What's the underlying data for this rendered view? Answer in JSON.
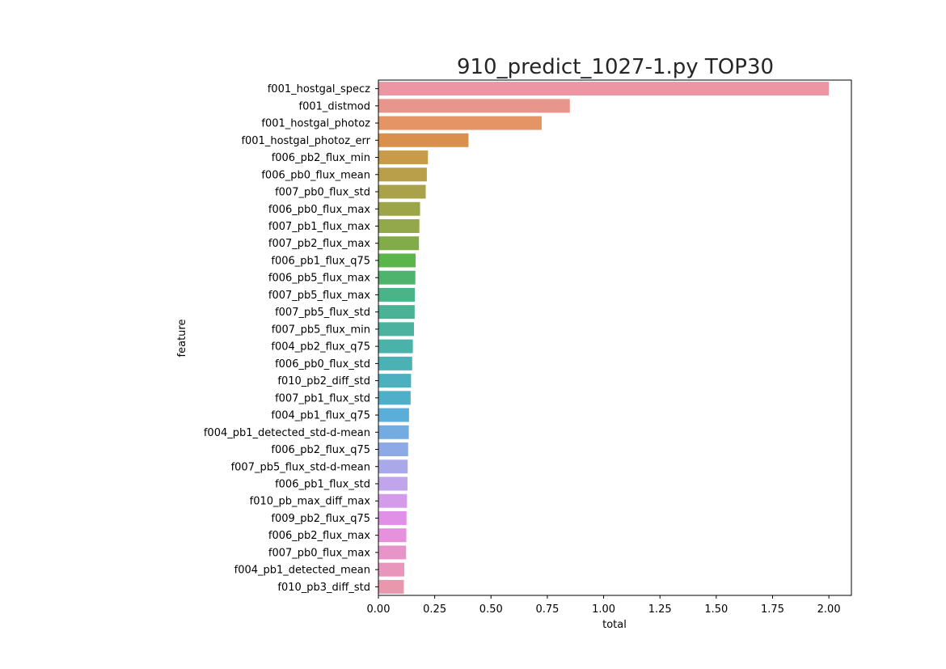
{
  "chart_data": {
    "type": "bar",
    "orientation": "horizontal",
    "title": "910_predict_1027-1.py TOP30",
    "xlabel": "total",
    "ylabel": "feature",
    "xlim": [
      0,
      2.1
    ],
    "xticks": [
      "0.00",
      "0.25",
      "0.50",
      "0.75",
      "1.00",
      "1.25",
      "1.50",
      "1.75",
      "2.00"
    ],
    "grid": false,
    "categories": [
      "f001_hostgal_specz",
      "f001_distmod",
      "f001_hostgal_photoz",
      "f001_hostgal_photoz_err",
      "f006_pb2_flux_min",
      "f006_pb0_flux_mean",
      "f007_pb0_flux_std",
      "f006_pb0_flux_max",
      "f007_pb1_flux_max",
      "f007_pb2_flux_max",
      "f006_pb1_flux_q75",
      "f006_pb5_flux_max",
      "f007_pb5_flux_max",
      "f007_pb5_flux_std",
      "f007_pb5_flux_min",
      "f004_pb2_flux_q75",
      "f006_pb0_flux_std",
      "f010_pb2_diff_std",
      "f007_pb1_flux_std",
      "f004_pb1_flux_q75",
      "f004_pb1_detected_std-d-mean",
      "f006_pb2_flux_q75",
      "f007_pb5_flux_std-d-mean",
      "f006_pb1_flux_std",
      "f010_pb_max_diff_max",
      "f009_pb2_flux_q75",
      "f006_pb2_flux_max",
      "f007_pb0_flux_max",
      "f004_pb1_detected_mean",
      "f010_pb3_diff_std"
    ],
    "values": [
      2.0,
      0.85,
      0.725,
      0.4,
      0.22,
      0.215,
      0.21,
      0.185,
      0.182,
      0.18,
      0.165,
      0.164,
      0.162,
      0.161,
      0.158,
      0.153,
      0.15,
      0.145,
      0.143,
      0.136,
      0.135,
      0.132,
      0.13,
      0.129,
      0.127,
      0.125,
      0.124,
      0.123,
      0.115,
      0.113
    ],
    "colors": [
      "#ea96a3",
      "#e8958c",
      "#e59465",
      "#d9904a",
      "#c89b49",
      "#b99f4a",
      "#a9a24a",
      "#9da549",
      "#92a84a",
      "#82ab4a",
      "#5ab54a",
      "#4db36d",
      "#4ab387",
      "#4ab395",
      "#4ab29f",
      "#4bb2a9",
      "#4cb1b4",
      "#4db0be",
      "#4eafc8",
      "#5baed9",
      "#73ace1",
      "#8eaae6",
      "#a9a9e9",
      "#c0a5ea",
      "#d59beb",
      "#e090e7",
      "#e691db",
      "#e794c9",
      "#e896bb",
      "#e997ad"
    ]
  }
}
